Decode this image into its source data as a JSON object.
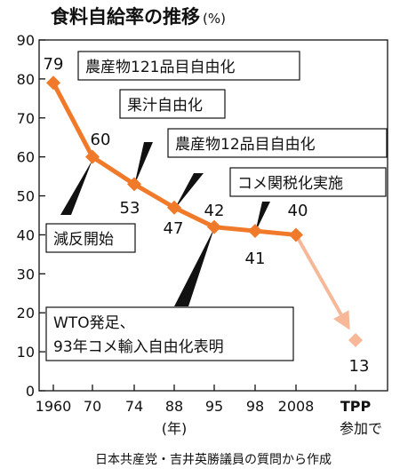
{
  "chart_data": {
    "type": "line",
    "title": "食料自給率の推移",
    "unit": "(%)",
    "ylim": [
      0,
      90
    ],
    "yticks": [
      0,
      10,
      20,
      30,
      40,
      50,
      60,
      70,
      80,
      90
    ],
    "x_ticks": [
      "1960",
      "70",
      "74",
      "88",
      "95",
      "98",
      "2008",
      "TPP"
    ],
    "x_tick_line2": "参加で",
    "x_unit": "(年)",
    "series": [
      {
        "color": "#f07a2a",
        "points": [
          {
            "x": "1960",
            "y": 79,
            "label": "79"
          },
          {
            "x": "70",
            "y": 60,
            "label": "60"
          },
          {
            "x": "74",
            "y": 53,
            "label": "53"
          },
          {
            "x": "88",
            "y": 47,
            "label": "47"
          },
          {
            "x": "95",
            "y": 42,
            "label": "42"
          },
          {
            "x": "98",
            "y": 41,
            "label": "41"
          },
          {
            "x": "2008",
            "y": 40,
            "label": "40"
          }
        ]
      },
      {
        "color": "#f6b898",
        "projected": true,
        "points": [
          {
            "x": "2008",
            "y": 40
          },
          {
            "x": "TPP",
            "y": 13,
            "label": "13"
          }
        ]
      }
    ],
    "annotations": [
      {
        "text": "農産物121品目自由化"
      },
      {
        "text": "果汁自由化"
      },
      {
        "text": "農産物12品目自由化"
      },
      {
        "text": "コメ関税化実施"
      },
      {
        "text": "減反開始"
      },
      {
        "lines": [
          "WTO発足、",
          "93年コメ輸入自由化表明"
        ]
      }
    ],
    "source": "日本共産党・吉井英勝議員の質問から作成"
  }
}
